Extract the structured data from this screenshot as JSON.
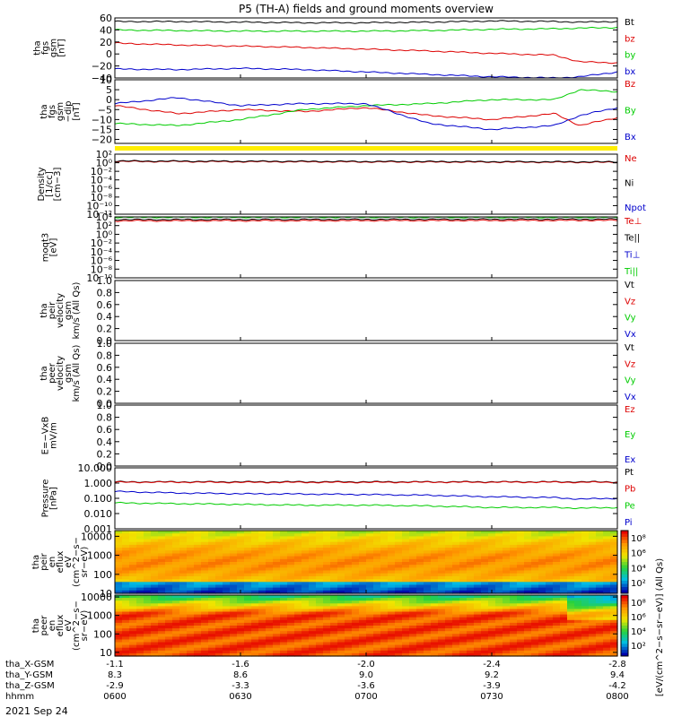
{
  "title": "P5 (TH-A) fields and ground moments overview",
  "date_label": "2021 Sep 24",
  "colors": {
    "black": "#000000",
    "red": "#dd0000",
    "green": "#00cc00",
    "blue": "#0000cc",
    "yellow": "#ffee00"
  },
  "time_axis": {
    "tick_times": [
      "0600",
      "0630",
      "0700",
      "0730",
      "0800"
    ],
    "rows": [
      {
        "label": "tha_X-GSM",
        "values": [
          "-1.1",
          "-1.6",
          "-2.0",
          "-2.4",
          "-2.8"
        ]
      },
      {
        "label": "tha_Y-GSM",
        "values": [
          "8.3",
          "8.6",
          "9.0",
          "9.2",
          "9.4"
        ]
      },
      {
        "label": "tha_Z-GSM",
        "values": [
          "-2.9",
          "-3.3",
          "-3.6",
          "-3.9",
          "-4.2"
        ]
      },
      {
        "label": "hhmm",
        "values": [
          "0600",
          "0630",
          "0700",
          "0730",
          "0800"
        ]
      }
    ]
  },
  "chart_data": [
    {
      "type": "line",
      "ylabel": [
        "tha",
        "fgs",
        "gsm",
        "[nT]"
      ],
      "ylim": [
        -40,
        60
      ],
      "yticks": [
        "60",
        "40",
        "20",
        "0",
        "−20",
        "−40"
      ],
      "ytick_values": [
        60,
        40,
        20,
        0,
        -20,
        -40
      ],
      "legend": [
        "Bt",
        "bz",
        "by",
        "bx"
      ],
      "x": [
        6.0,
        6.25,
        6.5,
        6.75,
        7.0,
        7.25,
        7.5,
        7.75,
        7.85,
        8.0
      ],
      "series": [
        {
          "name": "Bt",
          "color": "black",
          "values": [
            54,
            54,
            53,
            52,
            52,
            53,
            55,
            54,
            53,
            54
          ]
        },
        {
          "name": "bz",
          "color": "red",
          "values": [
            18,
            15,
            13,
            11,
            8,
            5,
            1,
            -2,
            -13,
            -15
          ]
        },
        {
          "name": "by",
          "color": "green",
          "values": [
            40,
            39,
            38,
            38,
            38,
            39,
            41,
            42,
            43,
            44
          ]
        },
        {
          "name": "bx",
          "color": "blue",
          "values": [
            -25,
            -26,
            -24,
            -26,
            -30,
            -34,
            -38,
            -40,
            -38,
            -30
          ]
        }
      ]
    },
    {
      "type": "line",
      "ylabel": [
        "tha",
        "fgs",
        "gsm",
        "−dip",
        "[nT]"
      ],
      "ylim": [
        -22,
        10
      ],
      "yticks": [
        "10",
        "5",
        "0",
        "−5",
        "−10",
        "−15",
        "−20"
      ],
      "ytick_values": [
        10,
        5,
        0,
        -5,
        -10,
        -15,
        -20
      ],
      "legend": [
        "Bz",
        "By",
        "Bx"
      ],
      "x": [
        6.0,
        6.25,
        6.5,
        6.75,
        7.0,
        7.25,
        7.5,
        7.75,
        7.85,
        8.0
      ],
      "series": [
        {
          "name": "Bz",
          "color": "red",
          "values": [
            -3,
            -7,
            -5,
            -6,
            -4,
            -8,
            -10,
            -7,
            -13,
            -9
          ]
        },
        {
          "name": "By",
          "color": "green",
          "values": [
            -12,
            -13,
            -10,
            -5,
            -3,
            -2,
            0,
            0,
            5,
            4
          ]
        },
        {
          "name": "Bx",
          "color": "blue",
          "values": [
            -2,
            1,
            -3,
            -2,
            -2,
            -12,
            -15,
            -13,
            -8,
            -4
          ]
        }
      ]
    },
    {
      "type": "line",
      "ylabel": [
        "Density",
        "[1/cc]",
        "[cm−3]"
      ],
      "log": true,
      "ylim": [
        -12,
        2
      ],
      "yticks": [
        "10²",
        "10⁰",
        "10⁻²",
        "10⁻⁴",
        "10⁻⁶",
        "10⁻⁸",
        "10⁻¹⁰",
        "10⁻¹²"
      ],
      "ytick_values": [
        2,
        0,
        -2,
        -4,
        -6,
        -8,
        -10,
        -12
      ],
      "legend": [
        "Ne",
        "Ni",
        "Npot"
      ],
      "x": [
        6.0,
        8.0
      ],
      "series": [
        {
          "name": "Ne",
          "color": "red",
          "values": [
            0.3,
            0.1
          ]
        },
        {
          "name": "Ni",
          "color": "black",
          "values": [
            0.4,
            0.2
          ]
        }
      ]
    },
    {
      "type": "line",
      "ylabel": [
        "moqt3",
        "[eV]"
      ],
      "log": true,
      "ylim": [
        -10,
        4
      ],
      "yticks": [
        "10⁴",
        "10²",
        "10⁰",
        "10⁻²",
        "10⁻⁴",
        "10⁻⁶",
        "10⁻⁸",
        "10⁻¹⁰"
      ],
      "ytick_values": [
        4,
        2,
        0,
        -2,
        -4,
        -6,
        -8,
        -10
      ],
      "legend": [
        "Te⊥",
        "Te||",
        "Ti⊥",
        "Ti||"
      ],
      "x": [
        6.0,
        8.0
      ],
      "series": [
        {
          "name": "Te⊥",
          "color": "red",
          "values": [
            3.1,
            3.2
          ]
        },
        {
          "name": "Te||",
          "color": "black",
          "values": [
            3.4,
            3.5
          ]
        },
        {
          "name": "Ti||",
          "color": "green",
          "values": [
            3.9,
            3.9
          ]
        }
      ]
    },
    {
      "type": "line",
      "ylabel": [
        "tha",
        "peir",
        "velocity",
        "gsm",
        "km/s (All Qs)"
      ],
      "ylim": [
        0,
        1
      ],
      "yticks": [
        "1.0",
        "0.8",
        "0.6",
        "0.4",
        "0.2",
        "0.0"
      ],
      "ytick_values": [
        1,
        0.8,
        0.6,
        0.4,
        0.2,
        0
      ],
      "legend": [
        "Vt",
        "Vz",
        "Vy",
        "Vx"
      ],
      "series": []
    },
    {
      "type": "line",
      "ylabel": [
        "tha",
        "peer",
        "velocity",
        "gsm",
        "km/s (All Qs)"
      ],
      "ylim": [
        0,
        1
      ],
      "yticks": [
        "1.0",
        "0.8",
        "0.6",
        "0.4",
        "0.2",
        "0.0"
      ],
      "ytick_values": [
        1,
        0.8,
        0.6,
        0.4,
        0.2,
        0
      ],
      "legend": [
        "Vt",
        "Vz",
        "Vy",
        "Vx"
      ],
      "series": []
    },
    {
      "type": "line",
      "ylabel": [
        "E=−VxB",
        "mV/m"
      ],
      "ylim": [
        0,
        1
      ],
      "yticks": [
        "1.0",
        "0.8",
        "0.6",
        "0.4",
        "0.2",
        "0.0"
      ],
      "ytick_values": [
        1,
        0.8,
        0.6,
        0.4,
        0.2,
        0
      ],
      "legend": [
        "Ez",
        "Ey",
        "Ex"
      ],
      "series": []
    },
    {
      "type": "line",
      "ylabel": [
        "Pressure",
        "[nPa]"
      ],
      "log": true,
      "ylim": [
        -3,
        1
      ],
      "yticks": [
        "10.000",
        "1.000",
        "0.100",
        "0.010",
        "0.001"
      ],
      "ytick_values": [
        1,
        0,
        -1,
        -2,
        -3
      ],
      "legend": [
        "Pt",
        "Pb",
        "Pe",
        "Pi"
      ],
      "x": [
        6.0,
        6.25,
        6.5,
        6.75,
        7.0,
        7.25,
        7.5,
        7.75,
        7.85,
        8.0
      ],
      "series": [
        {
          "name": "Pt",
          "color": "black",
          "values": [
            0.08,
            0.08,
            0.08,
            0.08,
            0.08,
            0.08,
            0.08,
            0.08,
            0.08,
            0.08
          ]
        },
        {
          "name": "Pb",
          "color": "red",
          "values": [
            0.06,
            0.06,
            0.05,
            0.05,
            0.05,
            0.06,
            0.06,
            0.06,
            0.05,
            0.06
          ]
        },
        {
          "name": "Pi",
          "color": "blue",
          "values": [
            -0.55,
            -0.65,
            -0.7,
            -0.72,
            -0.75,
            -0.8,
            -0.9,
            -0.95,
            -1.05,
            -1.0
          ]
        },
        {
          "name": "Pe",
          "color": "green",
          "values": [
            -1.3,
            -1.35,
            -1.4,
            -1.45,
            -1.45,
            -1.5,
            -1.6,
            -1.6,
            -1.65,
            -1.6
          ]
        }
      ]
    },
    {
      "type": "heatmap",
      "ylabel": [
        "tha",
        "peir",
        "en",
        "eflux",
        "eV",
        "(cm^2−s−",
        "sr−eV)"
      ],
      "ylim": [
        1,
        4.3
      ],
      "yticks": [
        "10000",
        "1000",
        "100",
        "10"
      ],
      "ytick_values": [
        4,
        3,
        2,
        1
      ],
      "colorbar_ticks": [
        "10⁸",
        "10⁶",
        "10⁴",
        "10²"
      ]
    },
    {
      "type": "heatmap",
      "ylabel": [
        "tha",
        "peer",
        "en",
        "eflux",
        "eV",
        "(cm^2−s−",
        "sr−eV)"
      ],
      "ylim": [
        0.8,
        4.1
      ],
      "yticks": [
        "10000",
        "1000",
        "100",
        "10"
      ],
      "ytick_values": [
        4,
        3,
        2,
        1
      ],
      "colorbar_ticks": [
        "10⁸",
        "10⁶",
        "10⁴",
        "10²"
      ]
    }
  ],
  "colorbar_label": "[eV/(cm^2−s−sr−eV)] (All Qs)"
}
